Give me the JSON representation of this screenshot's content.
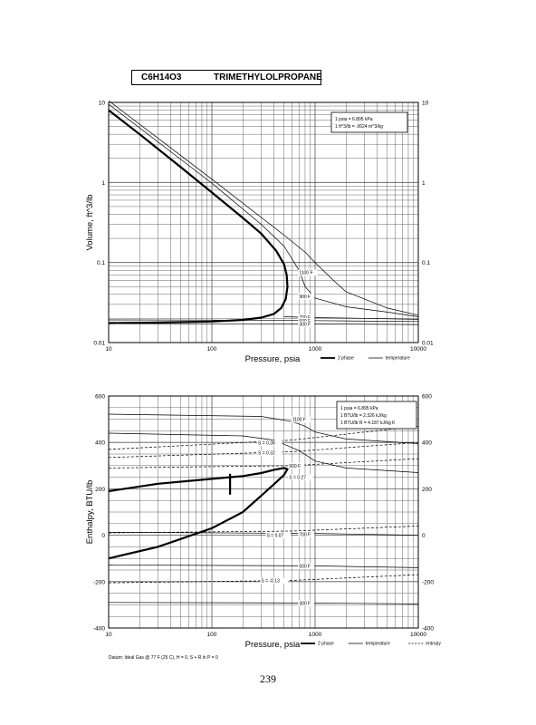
{
  "page": {
    "formula": "C6H14O3",
    "compound": "TRIMETHYLOLPROPANE",
    "page_number": "239",
    "datum_note": "Datum: Ideal Gas @ 77 F (25 C), H = 0, S + R ln P = 0"
  },
  "colors": {
    "ink": "#000000",
    "grid": "#555555",
    "paper": "#ffffff"
  },
  "chart_data": [
    {
      "type": "line",
      "xscale": "log",
      "yscale": "log",
      "xlabel": "Pressure,  psia",
      "ylabel": "Volume, ft^3/lb",
      "xlim": [
        10,
        10000
      ],
      "ylim": [
        0.01,
        10
      ],
      "x_ticks": [
        "10",
        "100",
        "1000",
        "10000"
      ],
      "y_ticks": [
        "0.01",
        "0.1",
        "1",
        "10"
      ],
      "grid": true,
      "conversion_box": [
        "1 psia = 6.895 kPa",
        "1 ft^3/lb = .0624 m^3/kg"
      ],
      "legend": [
        "2 phase",
        "temperature"
      ],
      "legend_position": "bottom-right",
      "series": [
        {
          "name": "2 phase",
          "kind": "dome",
          "points": [
            [
              10,
              0.0175
            ],
            [
              30,
              0.0178
            ],
            [
              100,
              0.0183
            ],
            [
              200,
              0.0192
            ],
            [
              300,
              0.0205
            ],
            [
              400,
              0.0228
            ],
            [
              470,
              0.027
            ],
            [
              520,
              0.035
            ],
            [
              540,
              0.05
            ],
            [
              530,
              0.07
            ],
            [
              500,
              0.095
            ],
            [
              420,
              0.14
            ],
            [
              300,
              0.23
            ],
            [
              200,
              0.36
            ],
            [
              100,
              0.75
            ],
            [
              50,
              1.55
            ],
            [
              20,
              4.0
            ],
            [
              10,
              8.0
            ]
          ]
        },
        {
          "name": "1100 F",
          "kind": "temperature",
          "points": [
            [
              10,
              10.5
            ],
            [
              100,
              1.1
            ],
            [
              500,
              0.22
            ],
            [
              800,
              0.135
            ],
            [
              1000,
              0.1
            ],
            [
              1500,
              0.06
            ],
            [
              2000,
              0.043
            ],
            [
              5000,
              0.027
            ],
            [
              10000,
              0.022
            ]
          ]
        },
        {
          "name": "900 F",
          "kind": "temperature",
          "points": [
            [
              10,
              9.5
            ],
            [
              100,
              0.98
            ],
            [
              300,
              0.3
            ],
            [
              500,
              0.16
            ],
            [
              700,
              0.08
            ],
            [
              800,
              0.05
            ],
            [
              1000,
              0.036
            ],
            [
              2000,
              0.028
            ],
            [
              5000,
              0.024
            ],
            [
              10000,
              0.021
            ]
          ]
        },
        {
          "name": "700 F",
          "kind": "temperature",
          "points": [
            [
              500,
              0.021
            ],
            [
              1000,
              0.0205
            ],
            [
              2000,
              0.0202
            ],
            [
              5000,
              0.0198
            ],
            [
              10000,
              0.0195
            ]
          ]
        },
        {
          "name": "500 F",
          "kind": "temperature",
          "points": [
            [
              10,
              0.0192
            ],
            [
              100,
              0.0191
            ],
            [
              1000,
              0.0188
            ],
            [
              10000,
              0.0183
            ]
          ]
        },
        {
          "name": "300 F",
          "kind": "temperature",
          "points": [
            [
              10,
              0.0172
            ],
            [
              1000,
              0.0171
            ],
            [
              10000,
              0.0168
            ]
          ]
        }
      ]
    },
    {
      "type": "line",
      "xscale": "log",
      "yscale": "linear",
      "xlabel": "Pressure,  psia",
      "ylabel": "Enthalpy, BTU/lb",
      "xlim": [
        10,
        10000
      ],
      "ylim": [
        -400,
        600
      ],
      "x_ticks": [
        "10",
        "100",
        "1000",
        "10000"
      ],
      "y_ticks": [
        "-400",
        "-200",
        "0",
        "200",
        "400",
        "600"
      ],
      "grid": true,
      "conversion_box": [
        "1 psia = 6.895 kPa",
        "1 BTU/lb = 2.326 kJ/kg",
        "1 BTU/lb R = 4.187 kJ/kg K"
      ],
      "legend": [
        "2 phase",
        "temperature",
        "entropy"
      ],
      "legend_position": "bottom-right",
      "series": [
        {
          "name": "2 phase",
          "kind": "dome",
          "points": [
            [
              10,
              -100
            ],
            [
              30,
              -50
            ],
            [
              100,
              30
            ],
            [
              200,
              100
            ],
            [
              300,
              170
            ],
            [
              400,
              220
            ],
            [
              500,
              260
            ],
            [
              540,
              285
            ],
            [
              500,
              290
            ],
            [
              400,
              282
            ],
            [
              300,
              268
            ],
            [
              200,
              255
            ],
            [
              100,
              243
            ],
            [
              30,
              222
            ],
            [
              10,
              190
            ]
          ]
        },
        {
          "name": "tie line",
          "kind": "dome",
          "points": [
            [
              150,
              175
            ],
            [
              150,
              265
            ]
          ]
        },
        {
          "name": "1100 F",
          "kind": "temperature",
          "points": [
            [
              10,
              522
            ],
            [
              300,
              512
            ],
            [
              600,
              490
            ],
            [
              800,
              470
            ],
            [
              1000,
              445
            ],
            [
              2000,
              415
            ],
            [
              10000,
              395
            ]
          ]
        },
        {
          "name": "900 F",
          "kind": "temperature",
          "points": [
            [
              10,
              440
            ],
            [
              200,
              428
            ],
            [
              400,
              410
            ],
            [
              700,
              365
            ],
            [
              1000,
              320
            ],
            [
              2000,
              290
            ],
            [
              10000,
              270
            ]
          ]
        },
        {
          "name": "700 F",
          "kind": "temperature",
          "points": [
            [
              10,
              13
            ],
            [
              1000,
              8
            ],
            [
              10000,
              0
            ]
          ]
        },
        {
          "name": "500 F",
          "kind": "temperature",
          "points": [
            [
              10,
              -128
            ],
            [
              1000,
              -132
            ],
            [
              10000,
              -140
            ]
          ]
        },
        {
          "name": "300 F",
          "kind": "temperature",
          "points": [
            [
              10,
              -290
            ],
            [
              1000,
              -292
            ],
            [
              10000,
              -296
            ]
          ]
        },
        {
          "name": "S = 0.38",
          "kind": "entropy",
          "points": [
            [
              10,
              370
            ],
            [
              600,
              410
            ],
            [
              10000,
              470
            ]
          ]
        },
        {
          "name": "S = 0.32",
          "kind": "entropy",
          "points": [
            [
              10,
              335
            ],
            [
              600,
              360
            ],
            [
              10000,
              400
            ]
          ]
        },
        {
          "name": "S = 0.27",
          "kind": "entropy",
          "points": [
            [
              10,
              290
            ],
            [
              600,
              300
            ],
            [
              10000,
              330
            ]
          ]
        },
        {
          "name": "S = 0.07",
          "kind": "entropy",
          "points": [
            [
              10,
              10
            ],
            [
              600,
              18
            ],
            [
              10000,
              40
            ]
          ]
        },
        {
          "name": "S = -0.13",
          "kind": "entropy",
          "points": [
            [
              10,
              -205
            ],
            [
              600,
              -195
            ],
            [
              10000,
              -170
            ]
          ]
        }
      ],
      "curve_labels": [
        {
          "text": "1100 F",
          "x": 600,
          "y": 500
        },
        {
          "text": "S = 0.38",
          "x": 280,
          "y": 398
        },
        {
          "text": "S = 0.32",
          "x": 280,
          "y": 355
        },
        {
          "text": "900 F",
          "x": 560,
          "y": 300
        },
        {
          "text": "S = 0.27",
          "x": 560,
          "y": 250
        },
        {
          "text": "700 F",
          "x": 700,
          "y": 5
        },
        {
          "text": "S = 0.07",
          "x": 340,
          "y": 0
        },
        {
          "text": "500 F",
          "x": 700,
          "y": -132
        },
        {
          "text": "S = -0.13",
          "x": 300,
          "y": -195
        },
        {
          "text": "300 F",
          "x": 700,
          "y": -292
        }
      ]
    }
  ],
  "volume_curve_labels": [
    {
      "text": "1100 F",
      "x": 700,
      "y": 0.075
    },
    {
      "text": "900 F",
      "x": 700,
      "y": 0.038
    },
    {
      "text": "700 F",
      "x": 700,
      "y": 0.0208
    },
    {
      "text": "500 F",
      "x": 700,
      "y": 0.0188
    },
    {
      "text": "300 F",
      "x": 700,
      "y": 0.0171
    }
  ]
}
